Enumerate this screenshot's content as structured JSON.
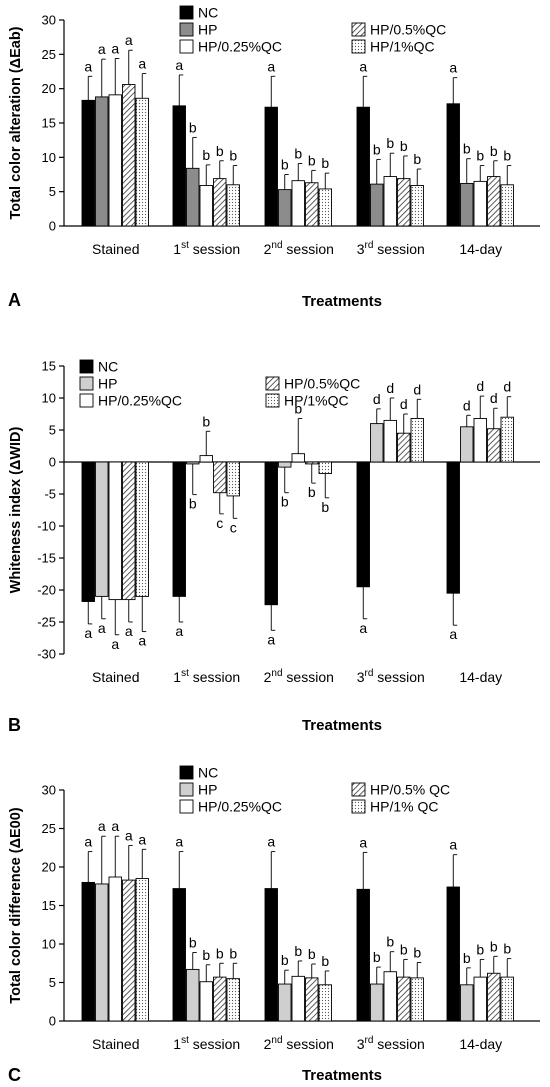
{
  "panel_A": {
    "panel_label": "A",
    "xlabel": "Treatments",
    "ylabel": "Total color alteration (ΔEab)",
    "chart_data": {
      "type": "bar",
      "categories": [
        "Stained",
        "1st session",
        "2nd session",
        "3rd session",
        "14-day"
      ],
      "ylim": [
        0,
        30
      ],
      "yticks": [
        0,
        5,
        10,
        15,
        20,
        25,
        30
      ],
      "legend_placement": "top",
      "series": [
        {
          "name": "NC",
          "values": [
            18.3,
            17.5,
            17.3,
            17.3,
            17.8
          ],
          "errors": [
            3.5,
            4.5,
            4.5,
            4.5,
            3.8
          ],
          "labels": [
            "a",
            "a",
            "a",
            "a",
            "a"
          ]
        },
        {
          "name": "HP",
          "values": [
            18.8,
            8.4,
            5.3,
            6.1,
            6.2
          ],
          "errors": [
            5.5,
            4.5,
            2.2,
            3.6,
            3.6
          ],
          "labels": [
            "a",
            "b",
            "b",
            "b",
            "b"
          ]
        },
        {
          "name": "HP/0.25%QC",
          "values": [
            19.1,
            5.9,
            6.6,
            7.2,
            6.5
          ],
          "errors": [
            5.3,
            3.0,
            2.5,
            3.4,
            2.3
          ],
          "labels": [
            "a",
            "b",
            "b",
            "b",
            "b"
          ]
        },
        {
          "name": "HP/0.5%QC",
          "values": [
            20.6,
            6.9,
            6.3,
            6.9,
            7.2
          ],
          "errors": [
            5.0,
            2.6,
            1.8,
            3.3,
            2.3
          ],
          "labels": [
            "a",
            "b",
            "b",
            "b",
            "b"
          ]
        },
        {
          "name": "HP/1%QC",
          "values": [
            18.6,
            6.0,
            5.4,
            5.9,
            6.0
          ],
          "errors": [
            3.6,
            2.8,
            2.3,
            2.4,
            2.8
          ],
          "labels": [
            "a",
            "b",
            "b",
            "b",
            "b"
          ]
        }
      ]
    }
  },
  "panel_B": {
    "panel_label": "B",
    "xlabel": "Treatments",
    "ylabel": "Whiteness index (ΔWID)",
    "chart_data": {
      "type": "bar",
      "categories": [
        "Stained",
        "1st session",
        "2nd session",
        "3rd session",
        "14-day"
      ],
      "ylim": [
        -30,
        15
      ],
      "yticks": [
        -30,
        -25,
        -20,
        -15,
        -10,
        -5,
        0,
        5,
        10,
        15
      ],
      "legend_placement": "top",
      "series": [
        {
          "name": "NC",
          "values": [
            -21.8,
            -21.0,
            -22.3,
            -19.5,
            -20.5
          ],
          "errors": [
            3.5,
            4.0,
            4.0,
            5.0,
            5.0
          ],
          "labels": [
            "a",
            "a",
            "a",
            "a",
            "a"
          ]
        },
        {
          "name": "HP",
          "values": [
            -21.0,
            -0.3,
            -0.8,
            6.0,
            5.5
          ],
          "errors": [
            3.5,
            4.8,
            4.0,
            2.3,
            1.8
          ],
          "labels": [
            "a",
            "b",
            "b",
            "d",
            "d"
          ]
        },
        {
          "name": "HP/0.25%QC",
          "values": [
            -21.5,
            1.0,
            1.3,
            6.5,
            6.8
          ],
          "errors": [
            5.5,
            3.8,
            5.5,
            3.5,
            3.5
          ],
          "labels": [
            "a",
            "b",
            "b",
            "d",
            "d"
          ]
        },
        {
          "name": "HP/0.5%QC",
          "values": [
            -21.5,
            -4.8,
            -0.3,
            4.5,
            5.2
          ],
          "errors": [
            3.5,
            3.3,
            3.0,
            3.0,
            3.2
          ],
          "labels": [
            "a",
            "c",
            "b",
            "d",
            "d"
          ]
        },
        {
          "name": "HP/1%QC",
          "values": [
            -21.0,
            -5.3,
            -1.8,
            6.8,
            7.0
          ],
          "errors": [
            5.5,
            3.5,
            3.8,
            3.0,
            3.2
          ],
          "labels": [
            "a",
            "c",
            "b",
            "d",
            "d"
          ]
        }
      ]
    }
  },
  "panel_C": {
    "panel_label": "C",
    "xlabel": "Treatments",
    "ylabel": "Total color difference (ΔE00)",
    "chart_data": {
      "type": "bar",
      "categories": [
        "Stained",
        "1st session",
        "2nd session",
        "3rd session",
        "14-day"
      ],
      "ylim": [
        0,
        30
      ],
      "yticks": [
        0,
        5,
        10,
        15,
        20,
        25,
        30
      ],
      "legend_placement": "top",
      "series": [
        {
          "name": "NC",
          "values": [
            18.0,
            17.2,
            17.2,
            17.1,
            17.4
          ],
          "errors": [
            4.0,
            4.8,
            4.8,
            4.8,
            4.2
          ],
          "labels": [
            "a",
            "a",
            "a",
            "a",
            "a"
          ]
        },
        {
          "name": "HP",
          "values": [
            17.8,
            6.7,
            4.8,
            4.8,
            4.7
          ],
          "errors": [
            6.2,
            2.2,
            1.8,
            2.2,
            2.2
          ],
          "labels": [
            "a",
            "b",
            "b",
            "b",
            "b"
          ]
        },
        {
          "name": "HP/0.25%QC",
          "values": [
            18.7,
            5.1,
            5.8,
            6.4,
            5.7
          ],
          "errors": [
            5.3,
            2.2,
            2.0,
            2.6,
            2.3
          ],
          "labels": [
            "a",
            "b",
            "b",
            "b",
            "b"
          ]
        },
        {
          "name": "HP/0.5% QC",
          "values": [
            18.3,
            5.7,
            5.6,
            5.7,
            6.2
          ],
          "errors": [
            4.5,
            1.8,
            1.8,
            2.3,
            2.2
          ],
          "labels": [
            "a",
            "b",
            "b",
            "b",
            "b"
          ]
        },
        {
          "name": "HP/1% QC",
          "values": [
            18.5,
            5.5,
            4.7,
            5.6,
            5.7
          ],
          "errors": [
            3.8,
            2.0,
            1.8,
            2.0,
            2.4
          ],
          "labels": [
            "a",
            "b",
            "b",
            "b",
            "b"
          ]
        }
      ]
    }
  }
}
